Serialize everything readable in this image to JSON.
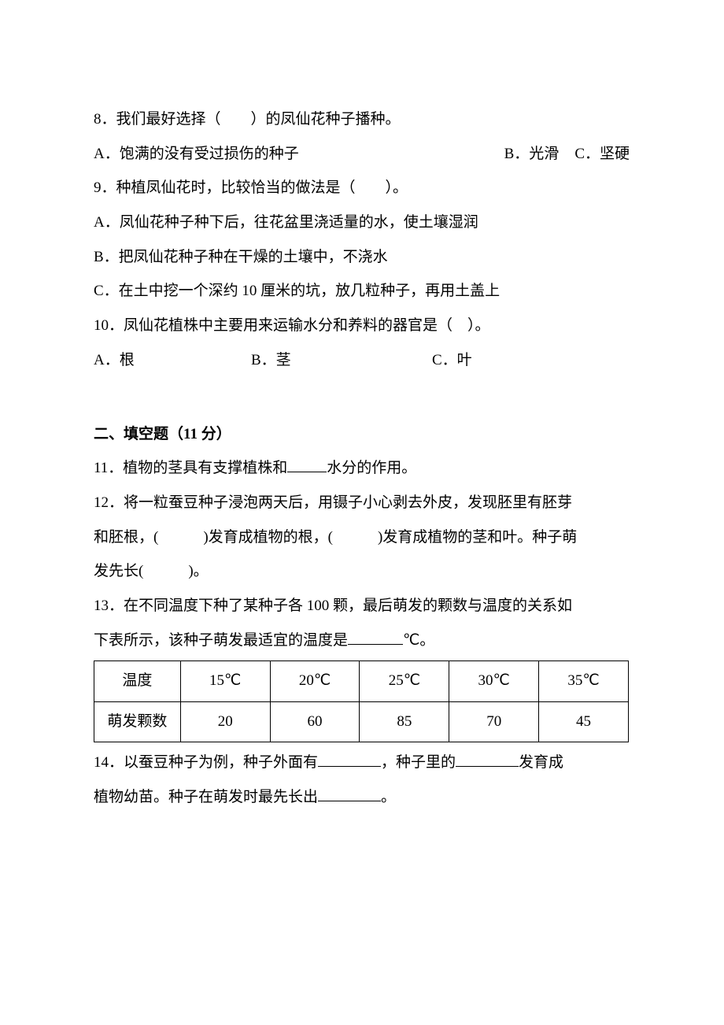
{
  "q8": {
    "text": "8．我们最好选择（　　）的凤仙花种子播种。",
    "A": "A．饱满的没有受过损伤的种子",
    "B": "B．光滑",
    "C": "C．坚硬"
  },
  "q9": {
    "text": "9．种植凤仙花时，比较恰当的做法是（　　）。",
    "A": "A．凤仙花种子种下后，往花盆里浇适量的水，使土壤湿润",
    "B": "B．把凤仙花种子种在干燥的土壤中，不浇水",
    "C": "C．在土中挖一个深约 10 厘米的坑，放几粒种子，再用土盖上"
  },
  "q10": {
    "text": "10．凤仙花植株中主要用来运输水分和养料的器官是（　）。",
    "A": "A．根",
    "B": "B．茎",
    "C": "C．叶"
  },
  "section2": {
    "header": "二、填空题（11 分）"
  },
  "q11": {
    "pre": "11．植物的茎具有支撑植株和",
    "post": "水分的作用。"
  },
  "q12": {
    "line1": "12．将一粒蚕豆种子浸泡两天后，用镊子小心剥去外皮，发现胚里有胚芽",
    "line2": "和胚根，(　　　)发育成植物的根，(　　　)发育成植物的茎和叶。种子萌",
    "line3": "发先长(　　　)。"
  },
  "q13": {
    "line1": "13．在不同温度下种了某种子各 100 颗，最后萌发的颗数与温度的关系如",
    "line2a": "下表所示，该种子萌发最适宜的温度是",
    "line2b": "℃。"
  },
  "table": {
    "headers": [
      "温度",
      "15℃",
      "20℃",
      "25℃",
      "30℃",
      "35℃"
    ],
    "rowLabel": "萌发颗数",
    "values": [
      "20",
      "60",
      "85",
      "70",
      "45"
    ]
  },
  "q14": {
    "pre": "14．以蚕豆种子为例，种子外面有",
    "mid": "，种子里的",
    "post1": "发育成",
    "line2a": "植物幼苗。种子在萌发时最先长出",
    "line2b": "。"
  }
}
